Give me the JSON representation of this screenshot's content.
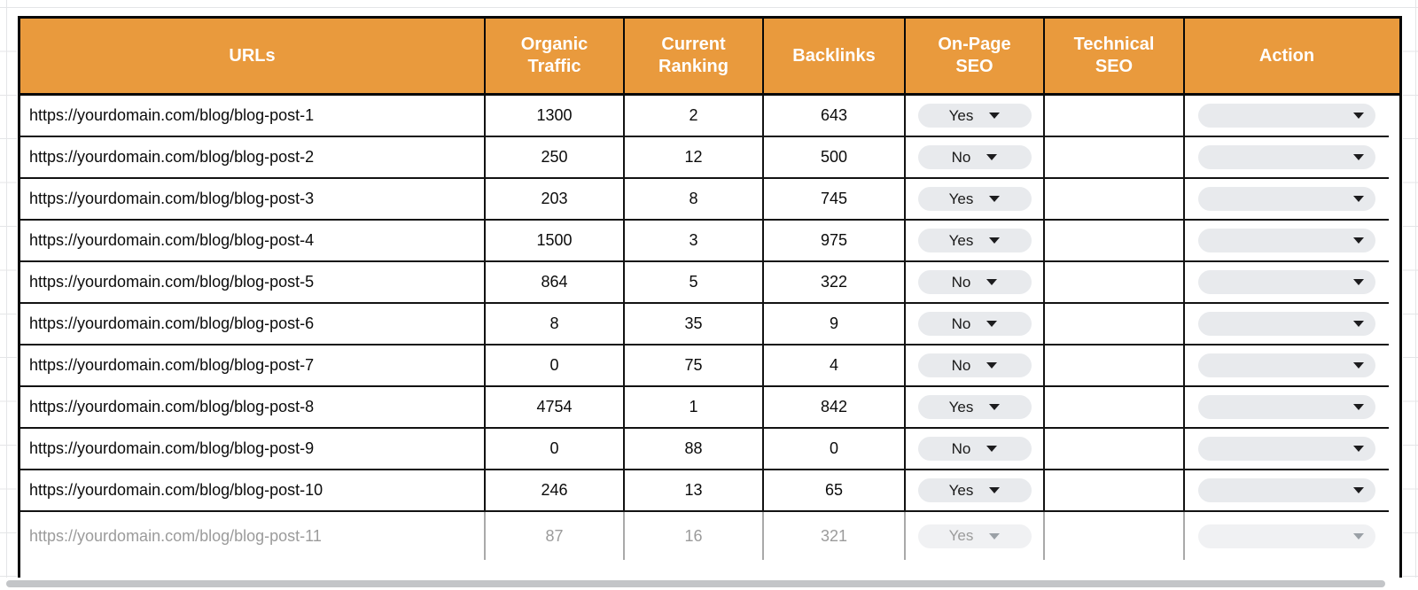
{
  "table": {
    "columns": [
      {
        "label": "URLs"
      },
      {
        "label": "Organic Traffic"
      },
      {
        "label": "Current Ranking"
      },
      {
        "label": "Backlinks"
      },
      {
        "label": "On-Page SEO"
      },
      {
        "label": "Technical SEO"
      },
      {
        "label": "Action"
      }
    ],
    "rows": [
      {
        "url": "https://yourdomain.com/blog/blog-post-1",
        "organic_traffic": "1300",
        "current_ranking": "2",
        "backlinks": "643",
        "on_page_seo": "Yes",
        "technical_seo": "",
        "action": "",
        "faded": false
      },
      {
        "url": "https://yourdomain.com/blog/blog-post-2",
        "organic_traffic": "250",
        "current_ranking": "12",
        "backlinks": "500",
        "on_page_seo": "No",
        "technical_seo": "",
        "action": "",
        "faded": false
      },
      {
        "url": "https://yourdomain.com/blog/blog-post-3",
        "organic_traffic": "203",
        "current_ranking": "8",
        "backlinks": "745",
        "on_page_seo": "Yes",
        "technical_seo": "",
        "action": "",
        "faded": false
      },
      {
        "url": "https://yourdomain.com/blog/blog-post-4",
        "organic_traffic": "1500",
        "current_ranking": "3",
        "backlinks": "975",
        "on_page_seo": "Yes",
        "technical_seo": "",
        "action": "",
        "faded": false
      },
      {
        "url": "https://yourdomain.com/blog/blog-post-5",
        "organic_traffic": "864",
        "current_ranking": "5",
        "backlinks": "322",
        "on_page_seo": "No",
        "technical_seo": "",
        "action": "",
        "faded": false
      },
      {
        "url": "https://yourdomain.com/blog/blog-post-6",
        "organic_traffic": "8",
        "current_ranking": "35",
        "backlinks": "9",
        "on_page_seo": "No",
        "technical_seo": "",
        "action": "",
        "faded": false
      },
      {
        "url": "https://yourdomain.com/blog/blog-post-7",
        "organic_traffic": "0",
        "current_ranking": "75",
        "backlinks": "4",
        "on_page_seo": "No",
        "technical_seo": "",
        "action": "",
        "faded": false
      },
      {
        "url": "https://yourdomain.com/blog/blog-post-8",
        "organic_traffic": "4754",
        "current_ranking": "1",
        "backlinks": "842",
        "on_page_seo": "Yes",
        "technical_seo": "",
        "action": "",
        "faded": false
      },
      {
        "url": "https://yourdomain.com/blog/blog-post-9",
        "organic_traffic": "0",
        "current_ranking": "88",
        "backlinks": "0",
        "on_page_seo": "No",
        "technical_seo": "",
        "action": "",
        "faded": false
      },
      {
        "url": "https://yourdomain.com/blog/blog-post-10",
        "organic_traffic": "246",
        "current_ranking": "13",
        "backlinks": "65",
        "on_page_seo": "Yes",
        "technical_seo": "",
        "action": "",
        "faded": false
      },
      {
        "url": "https://yourdomain.com/blog/blog-post-11",
        "organic_traffic": "87",
        "current_ranking": "16",
        "backlinks": "321",
        "on_page_seo": "Yes",
        "technical_seo": "",
        "action": "",
        "faded": true
      }
    ]
  },
  "colors": {
    "header_background": "#E99A3D",
    "header_text": "#FFFFFF",
    "table_border": "#080808",
    "dropdown_chip": "#E8EAED",
    "faded_text": "#9B9B9B",
    "scrollbar": "#C3C5C8",
    "gridline": "#E4E5E7"
  }
}
